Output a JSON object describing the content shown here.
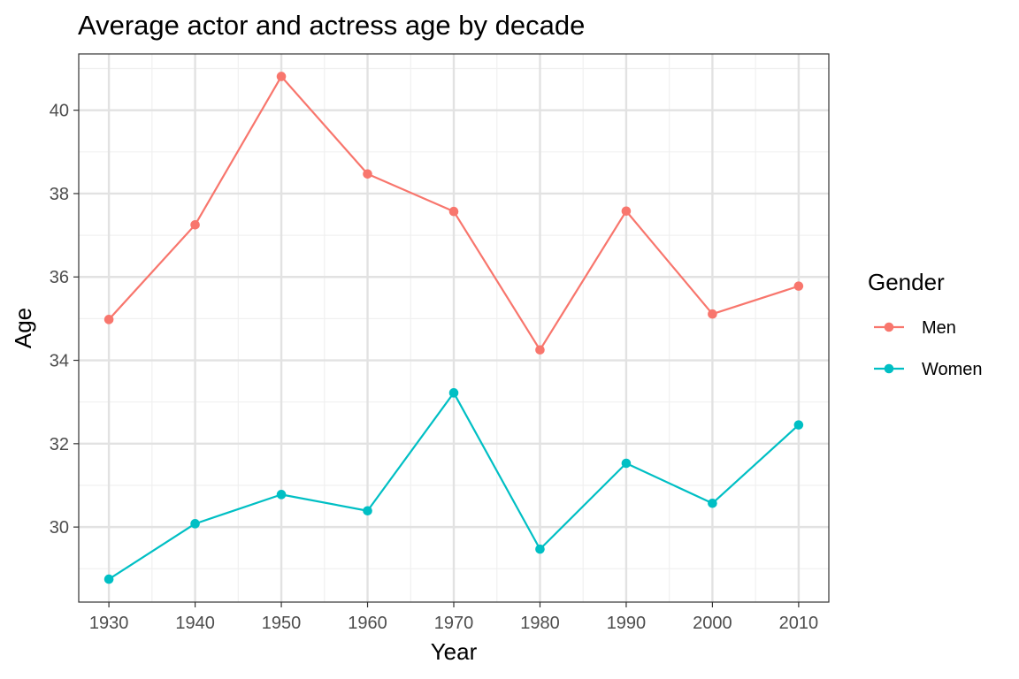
{
  "chart_data": {
    "type": "line",
    "title": "Average actor and actress age by decade",
    "xlabel": "Year",
    "ylabel": "Age",
    "x": [
      1930,
      1940,
      1950,
      1960,
      1970,
      1980,
      1990,
      2000,
      2010
    ],
    "x_ticks": [
      "1930",
      "1940",
      "1950",
      "1960",
      "1970",
      "1980",
      "1990",
      "2000",
      "2010"
    ],
    "y_ticks": [
      "30",
      "32",
      "34",
      "36",
      "38",
      "40"
    ],
    "xlim": [
      1926.5,
      2013.5
    ],
    "ylim": [
      28.2,
      41.35
    ],
    "grid": true,
    "legend": {
      "title": "Gender",
      "position": "right"
    },
    "series": [
      {
        "name": "Men",
        "color": "#F8766D",
        "values": [
          34.98,
          37.25,
          40.81,
          38.47,
          37.57,
          34.25,
          37.58,
          35.11,
          35.78
        ]
      },
      {
        "name": "Women",
        "color": "#00BFC4",
        "values": [
          28.75,
          30.08,
          30.78,
          30.39,
          33.22,
          29.47,
          31.53,
          30.57,
          32.45
        ]
      }
    ]
  }
}
